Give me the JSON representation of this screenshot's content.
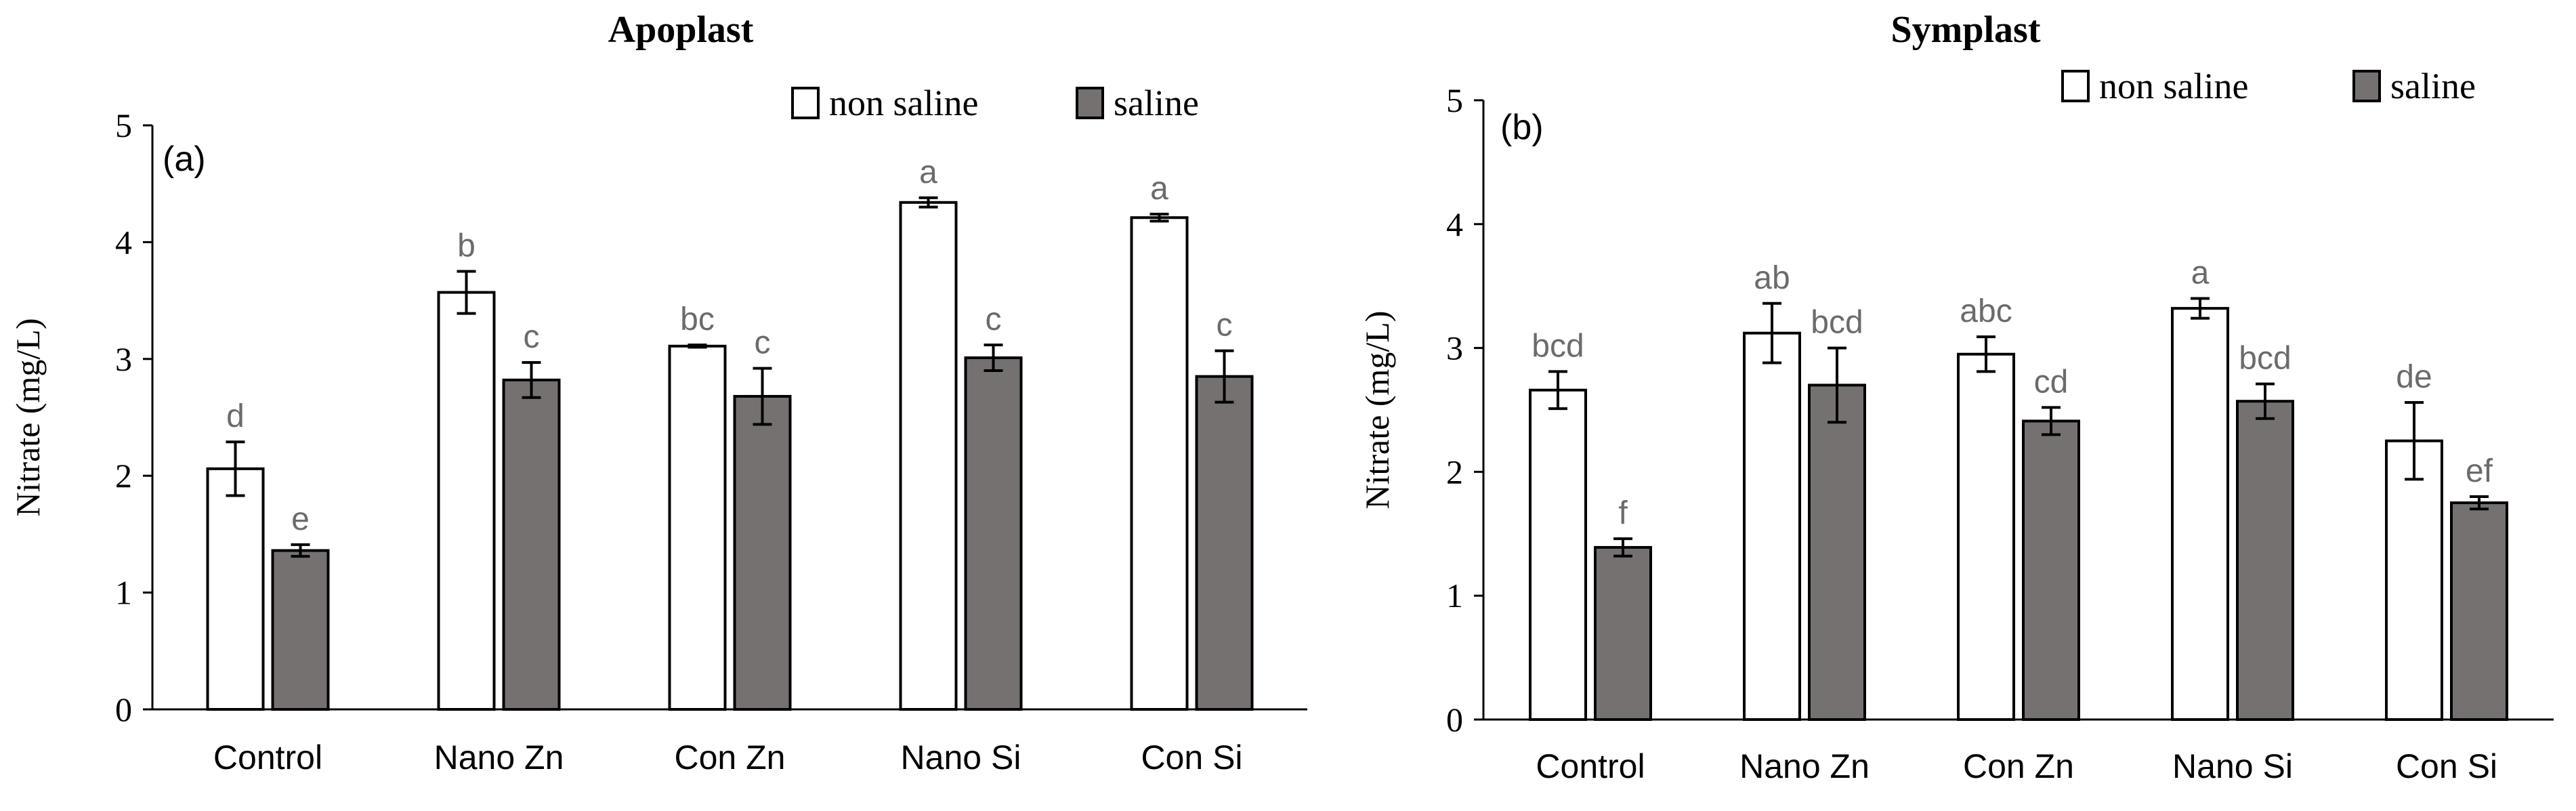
{
  "chart_data": [
    {
      "id": "apoplast",
      "type": "bar",
      "title": "Apoplast",
      "panel_label": "(a)",
      "ylabel": "Nitrate (mg/L)",
      "xlabel": "",
      "ylim": [
        0,
        5
      ],
      "yticks": [
        0,
        1,
        2,
        3,
        4,
        5
      ],
      "categories": [
        "Control",
        "Nano Zn",
        "Con Zn",
        "Nano Si",
        "Con Si"
      ],
      "legend": [
        "non saline",
        "saline"
      ],
      "legend_position": "top-right",
      "series": [
        {
          "name": "non saline",
          "color": "#ffffff",
          "values": [
            2.06,
            3.57,
            3.11,
            4.34,
            4.21
          ],
          "errors": [
            0.23,
            0.18,
            0.01,
            0.04,
            0.03
          ],
          "letters": [
            "d",
            "b",
            "bc",
            "a",
            "a"
          ]
        },
        {
          "name": "saline",
          "color": "#767171",
          "values": [
            1.36,
            2.82,
            2.68,
            3.01,
            2.85
          ],
          "errors": [
            0.05,
            0.15,
            0.24,
            0.11,
            0.22
          ],
          "letters": [
            "e",
            "c",
            "c",
            "c",
            "c"
          ]
        }
      ]
    },
    {
      "id": "symplast",
      "type": "bar",
      "title": "Symplast",
      "panel_label": "(b)",
      "ylabel": "Nitrate (mg/L)",
      "xlabel": "",
      "ylim": [
        0,
        5
      ],
      "yticks": [
        0,
        1,
        2,
        3,
        4,
        5
      ],
      "categories": [
        "Control",
        "Nano Zn",
        "Con Zn",
        "Nano Si",
        "Con Si"
      ],
      "legend": [
        "non saline",
        "saline"
      ],
      "legend_position": "top-right",
      "series": [
        {
          "name": "non saline",
          "color": "#ffffff",
          "values": [
            2.66,
            3.12,
            2.95,
            3.32,
            2.25
          ],
          "errors": [
            0.15,
            0.24,
            0.14,
            0.08,
            0.31
          ],
          "letters": [
            "bcd",
            "ab",
            "abc",
            "a",
            "de"
          ]
        },
        {
          "name": "saline",
          "color": "#767171",
          "values": [
            1.39,
            2.7,
            2.41,
            2.57,
            1.75
          ],
          "errors": [
            0.07,
            0.3,
            0.11,
            0.14,
            0.05
          ],
          "letters": [
            "f",
            "bcd",
            "cd",
            "bcd",
            "ef"
          ]
        }
      ]
    }
  ],
  "style": {
    "axis_color": "#000000",
    "bar_edge": "#000000",
    "letter_color": "#6b6b6b",
    "text_color": "#000000"
  }
}
